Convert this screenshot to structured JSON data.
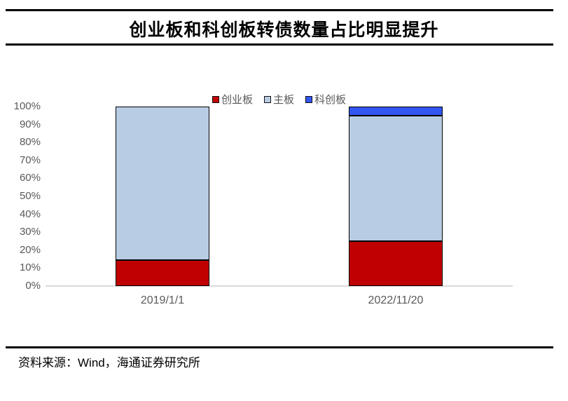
{
  "figure": {
    "title": "创业板和科创板转债数量占比明显提升",
    "source": {
      "prefix": "资料来源：",
      "vendor": "Wind",
      "suffix": "，海通证券研究所"
    }
  },
  "chart_data": {
    "type": "bar",
    "variant": "stacked-100-percent",
    "title": "创业板和科创板转债数量占比明显提升",
    "categories": [
      "2019/1/1",
      "2022/11/20"
    ],
    "series": [
      {
        "name": "创业板",
        "color": "#C00000",
        "values": [
          14.5,
          25
        ]
      },
      {
        "name": "主板",
        "color": "#B8CCE4",
        "values": [
          85.5,
          70
        ]
      },
      {
        "name": "科创板",
        "color": "#3355F0",
        "values": [
          0,
          5
        ]
      }
    ],
    "xlabel": "",
    "ylabel": "",
    "ylim": [
      0,
      100
    ],
    "y_ticks": [
      "0%",
      "10%",
      "20%",
      "30%",
      "40%",
      "50%",
      "60%",
      "70%",
      "80%",
      "90%",
      "100%"
    ],
    "legend": [
      "创业板",
      "主板",
      "科创板"
    ],
    "legend_position": "top-center",
    "grid": false,
    "axis_text_color": "#595959",
    "baseline_color": "#D9D9D9",
    "bar_border_color": "#000000"
  }
}
